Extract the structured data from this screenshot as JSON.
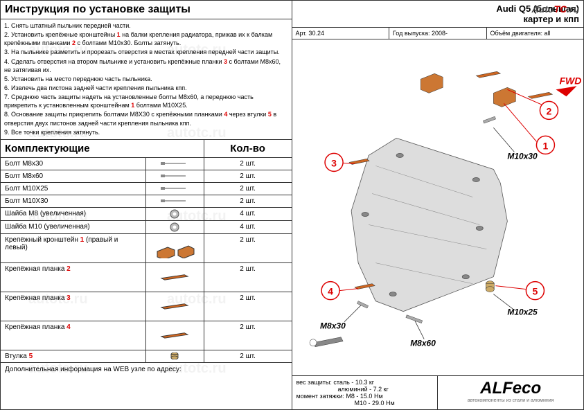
{
  "left": {
    "title": "Инструкция по установке защиты",
    "instructions": [
      "1. Снять штатный пыльник передней части.",
      "2. Установить крепёжные кронштейны <r>1</r> на балки крепления радиатора, прижав их к балкам крепёжными планками <r>2</r> с болтами M10x30. Болты затянуть.",
      "3. На пыльнике разметить и прорезать отверстия в местах крепления передней части защиты.",
      "4. Сделать отверстия на втором пыльнике и установить крепёжные планки <r>3</r> с болтами M8x60, не затягивая их.",
      "5. Установить на место переднюю часть пыльника.",
      "6. Извлечь два пистона задней части крепления пыльника кпп.",
      "7. Среднюю часть защиты надеть на установленные болты M8x60, а переднюю часть прикрепить к установленным кронштейнам <r>1</r> болтами M10X25.",
      "8. Основание защиты прикрепить болтами M8X30 с крепёжными планками <r>4</r> через втулки <r>5</r> в отверстия двух пистонов задней части крепления пыльника кпп.",
      "9.    Все точки крепления затянуть."
    ],
    "parts_title": "Комплектующие",
    "qty_title": "Кол-во",
    "parts": [
      {
        "name": "Болт M8x30",
        "type": "bolt",
        "qty": "2 шт."
      },
      {
        "name": "Болт M8x60",
        "type": "bolt",
        "qty": "2 шт."
      },
      {
        "name": "Болт M10X25",
        "type": "bolt",
        "qty": "2 шт."
      },
      {
        "name": "Болт M10X30",
        "type": "bolt",
        "qty": "2 шт."
      },
      {
        "name": "Шайба M8   (увеличенная)",
        "type": "washer",
        "qty": "4 шт."
      },
      {
        "name": "Шайба M10 (увеличенная)",
        "type": "washer",
        "qty": "4 шт."
      },
      {
        "name": "Крепёжный кронштейн <r>1</r> (правый и левый)",
        "type": "bracket",
        "qty": "2 шт.",
        "tall": true
      },
      {
        "name": "Крепёжная планка <r>2</r>",
        "type": "plank",
        "qty": "2 шт.",
        "tall": true
      },
      {
        "name": "Крепёжная планка <r>3</r>",
        "type": "plank",
        "qty": "2 шт.",
        "tall": true
      },
      {
        "name": "Крепёжная планка <r>4</r>",
        "type": "plank",
        "qty": "2 шт.",
        "tall": true
      },
      {
        "name": "Втулка <r>5</r>",
        "type": "sleeve",
        "qty": "2 шт."
      }
    ],
    "footer": "Дополнительная информация на WEB узле по адресу:"
  },
  "right": {
    "header_line1": "Audi Q5 (большая)",
    "header_line2": "картер и кпп",
    "meta": {
      "art": "Арт. 30.24",
      "year": "Год выпуска: 2008-",
      "engine": "Объём двигателя: all"
    },
    "callouts": [
      "1",
      "2",
      "3",
      "4",
      "5"
    ],
    "bolt_labels": [
      "M10x30",
      "M8x30",
      "M8x60",
      "M10x25"
    ],
    "fwd": "FWD",
    "specs": {
      "weight_label": "вес защиты:",
      "weight_steel": "сталь - 10.3 кг",
      "weight_al": "алюминий - 7.2 кг",
      "torque_label": "момент затяжки:",
      "torque_m8": "M8  - 15.0 Нм",
      "torque_m10": "M10 - 29.0 Нм"
    },
    "logo": {
      "main": "ALFeco",
      "sub": "автокомпоненты из стали и алюминия"
    }
  },
  "colors": {
    "red": "#d00",
    "orange": "#cc6622",
    "border": "#333333"
  },
  "corner_logo": {
    "auto": "Auto",
    "tc": "TC",
    "ru": ".ru"
  }
}
